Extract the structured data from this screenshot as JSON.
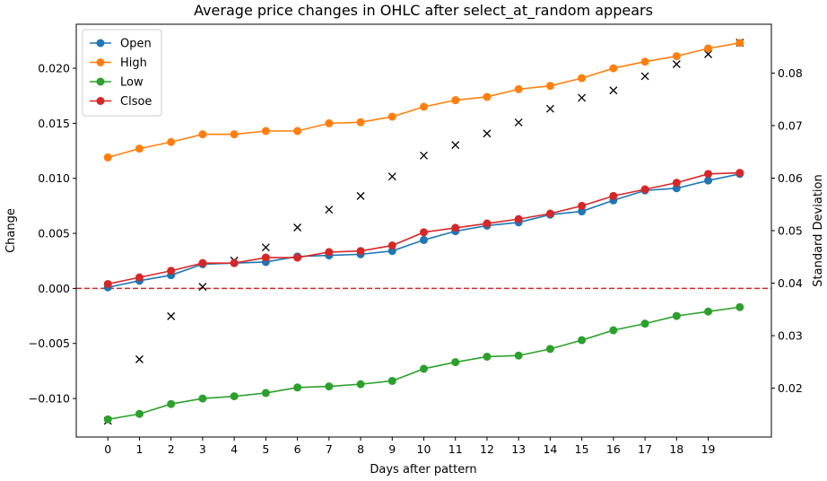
{
  "chart_data": {
    "type": "line",
    "title": "Average price changes in OHLC after select_at_random appears",
    "xlabel": "Days after pattern",
    "ylabel": "Change",
    "y2label": "Standard Deviation",
    "x": [
      0,
      1,
      2,
      3,
      4,
      5,
      6,
      7,
      8,
      9,
      10,
      11,
      12,
      13,
      14,
      15,
      16,
      17,
      18,
      19,
      20
    ],
    "xticks": [
      0,
      1,
      2,
      3,
      4,
      5,
      6,
      7,
      8,
      9,
      10,
      11,
      12,
      13,
      14,
      15,
      16,
      17,
      18,
      19
    ],
    "xlim": [
      -1.0,
      21.0
    ],
    "ylim": [
      -0.0135,
      0.024
    ],
    "yticks": [
      -0.01,
      -0.005,
      0.0,
      0.005,
      0.01,
      0.015,
      0.02
    ],
    "ytick_labels": [
      "−0.010",
      "−0.005",
      "0.000",
      "0.005",
      "0.010",
      "0.015",
      "0.020"
    ],
    "y2lim": [
      0.0107,
      0.0893
    ],
    "y2ticks": [
      0.02,
      0.03,
      0.04,
      0.05,
      0.06,
      0.07,
      0.08
    ],
    "y2tick_labels": [
      "0.02",
      "0.03",
      "0.04",
      "0.05",
      "0.06",
      "0.07",
      "0.08"
    ],
    "legend_position": "top-left",
    "series": [
      {
        "name": "Open",
        "color": "#1f77b4",
        "values": [
          0.0001,
          0.0007,
          0.0012,
          0.0022,
          0.0023,
          0.0024,
          0.0029,
          0.003,
          0.0031,
          0.0034,
          0.0044,
          0.0052,
          0.0057,
          0.006,
          0.0067,
          0.007,
          0.008,
          0.0089,
          0.0091,
          0.0098,
          0.0104
        ]
      },
      {
        "name": "High",
        "color": "#ff7f0e",
        "values": [
          0.0119,
          0.0127,
          0.0133,
          0.014,
          0.014,
          0.0143,
          0.0143,
          0.015,
          0.0151,
          0.0156,
          0.0165,
          0.0171,
          0.0174,
          0.0181,
          0.0184,
          0.0191,
          0.02,
          0.0206,
          0.0211,
          0.0218,
          0.0223
        ]
      },
      {
        "name": "Low",
        "color": "#2ca02c",
        "values": [
          -0.0119,
          -0.0114,
          -0.0105,
          -0.01,
          -0.0098,
          -0.0095,
          -0.009,
          -0.0089,
          -0.0087,
          -0.0084,
          -0.0073,
          -0.0067,
          -0.0062,
          -0.0061,
          -0.0055,
          -0.0047,
          -0.0038,
          -0.0032,
          -0.0025,
          -0.0021,
          -0.0017
        ]
      },
      {
        "name": "Clsoe",
        "color": "#d62728",
        "values": [
          0.0004,
          0.001,
          0.0016,
          0.0023,
          0.0023,
          0.0028,
          0.0028,
          0.0033,
          0.0034,
          0.0039,
          0.0051,
          0.0055,
          0.0059,
          0.0063,
          0.0068,
          0.0075,
          0.0084,
          0.009,
          0.0096,
          0.0104,
          0.0105
        ]
      }
    ],
    "std_series": {
      "axis": "right",
      "marker": "x",
      "color": "#000000",
      "values": [
        0.0138,
        0.0255,
        0.0337,
        0.0393,
        0.0443,
        0.0468,
        0.0506,
        0.054,
        0.0566,
        0.0603,
        0.0643,
        0.0663,
        0.0685,
        0.0706,
        0.0732,
        0.0753,
        0.0767,
        0.0794,
        0.0817,
        0.0836,
        0.0858
      ]
    },
    "zero_line": {
      "y": 0.0,
      "color": "#d62728",
      "style": "dashed"
    }
  }
}
